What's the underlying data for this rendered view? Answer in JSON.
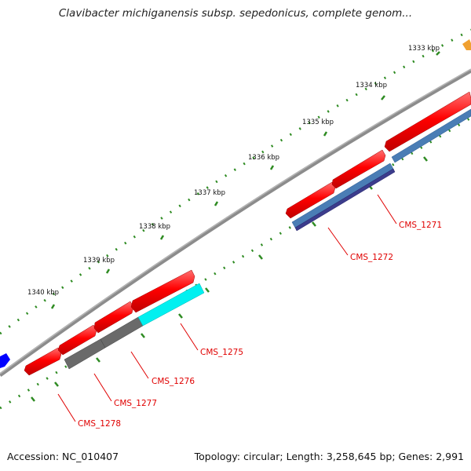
{
  "title": "Clavibacter michiganensis subsp. sepedonicus, complete genom...",
  "footer": {
    "accession": "Accession: NC_010407",
    "summary": "Topology: circular; Length: 3,258,645 bp; Genes: 2,991"
  },
  "colors": {
    "cds_forward": "#ff0000",
    "backbone": "#8c8c8c",
    "scale_ticks": "#2e8b22",
    "gene_labels": "#e00000"
  },
  "scale_labels": [
    "1333 kbp",
    "1334 kbp",
    "1335 kbp",
    "1336 kbp",
    "1337 kbp",
    "1338 kbp",
    "1339 kbp",
    "1340 kbp"
  ],
  "gene_labels": [
    "CMS_1271",
    "CMS_1272",
    "CMS_1275",
    "CMS_1276",
    "CMS_1277",
    "CMS_1278"
  ],
  "feature_colors": {
    "CMS_1271": "#4a7db5",
    "CMS_1272": "#3c3c8c",
    "CMS_1275": "#00f0f0",
    "CMS_1276": "#6a6a6a",
    "CMS_1277": "#6a6a6a",
    "CMS_1278": "#ff0000"
  }
}
